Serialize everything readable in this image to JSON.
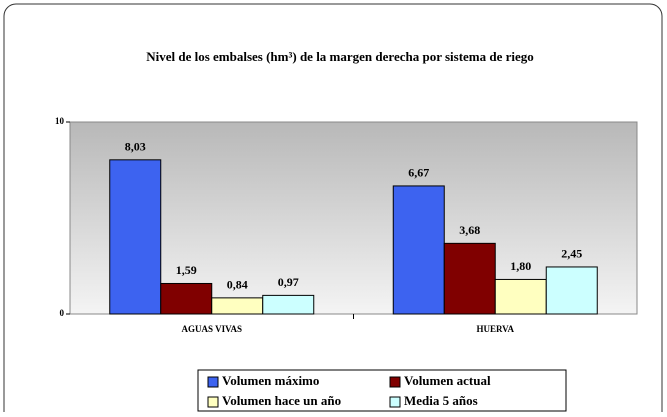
{
  "chart_data": {
    "type": "bar",
    "title": "Nivel de los embalses (hm³) de la margen derecha por sistema de riego",
    "categories": [
      "AGUAS VIVAS",
      "HUERVA"
    ],
    "series": [
      {
        "name": "Volumen máximo",
        "color": "#3d63f0",
        "values": [
          8.03,
          6.67
        ],
        "value_labels": [
          "8,03",
          "6,67"
        ]
      },
      {
        "name": "Volumen actual",
        "color": "#800000",
        "values": [
          1.59,
          3.68
        ],
        "value_labels": [
          "1,59",
          "3,68"
        ]
      },
      {
        "name": "Volumen hace un año",
        "color": "#ffffc0",
        "values": [
          0.84,
          1.8
        ],
        "value_labels": [
          "0,84",
          "1,80"
        ]
      },
      {
        "name": "Media 5 años",
        "color": "#ccffff",
        "values": [
          0.97,
          2.45
        ],
        "value_labels": [
          "0,97",
          "2,45"
        ]
      }
    ],
    "ylim": [
      0,
      10
    ],
    "yticks": [
      0,
      10
    ],
    "legend": "bottom"
  }
}
